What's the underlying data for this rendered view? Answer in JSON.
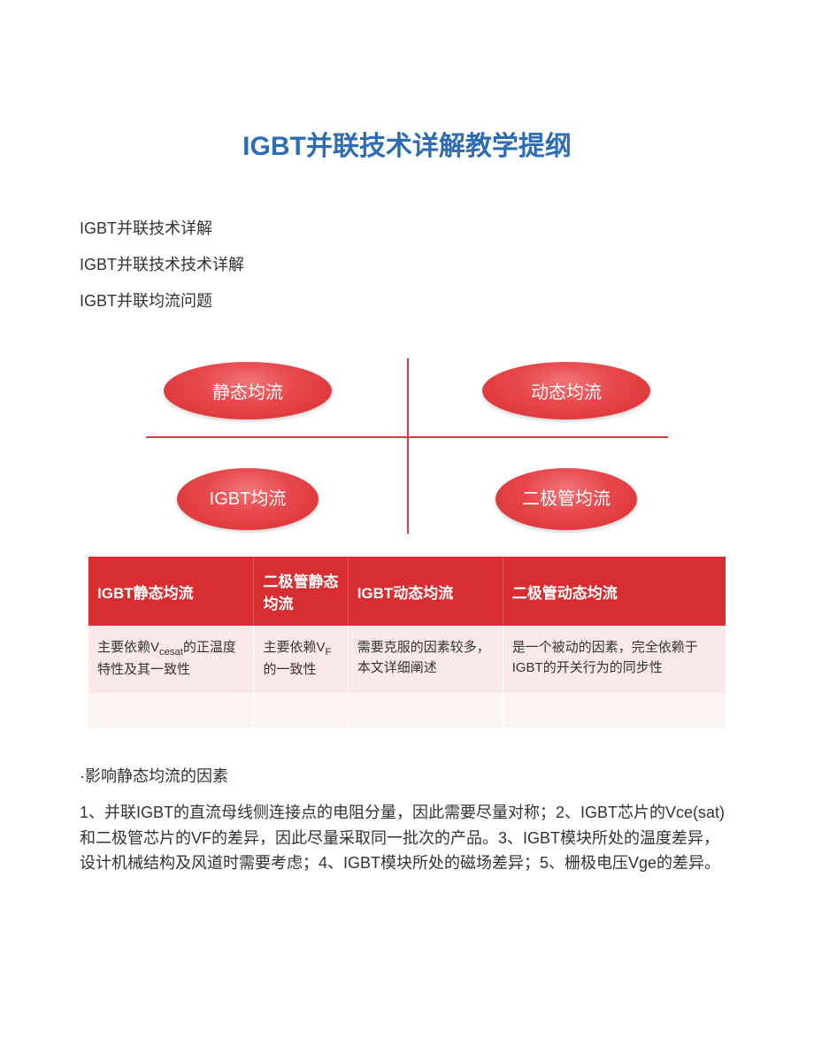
{
  "title": "IGBT并联技术详解教学提纲",
  "intro": [
    "IGBT并联技术详解",
    "IGBT并联技术技术详解",
    "IGBT并联均流问题"
  ],
  "quadrant": {
    "top_left": "静态均流",
    "top_right": "动态均流",
    "bottom_left": "IGBT均流",
    "bottom_right": "二极管均流"
  },
  "table": {
    "headers": [
      "IGBT静态均流",
      "二极管静态均流",
      "IGBT动态均流",
      "二极管动态均流"
    ],
    "row1": [
      {
        "prefix": "主要依赖V",
        "sub": "cesat",
        "suffix": "的正温度特性及其一致性"
      },
      {
        "prefix": "主要依赖V",
        "sub": "F",
        "suffix": "的一致性"
      },
      {
        "text": "需要克服的因素较多，本文详细阐述"
      },
      {
        "text": "是一个被动的因素，完全依赖于IGBT的开关行为的同步性"
      }
    ]
  },
  "section_header": "·影响静态均流的因素",
  "body_text": "1、并联IGBT的直流母线侧连接点的电阻分量，因此需要尽量对称；2、IGBT芯片的Vce(sat)和二极管芯片的VF的差异，因此尽量采取同一批次的产品。3、IGBT模块所处的温度差异，设计机械结构及风道时需要考虑；4、IGBT模块所处的磁场差异；5、栅极电压Vge的差异。",
  "watermark": "",
  "colors": {
    "title_color": "#2e6db4",
    "ellipse_color": "#d82e32",
    "table_header_bg": "#d82e32",
    "table_cell_bg": "#fbe9ea",
    "text_color": "#333333"
  }
}
